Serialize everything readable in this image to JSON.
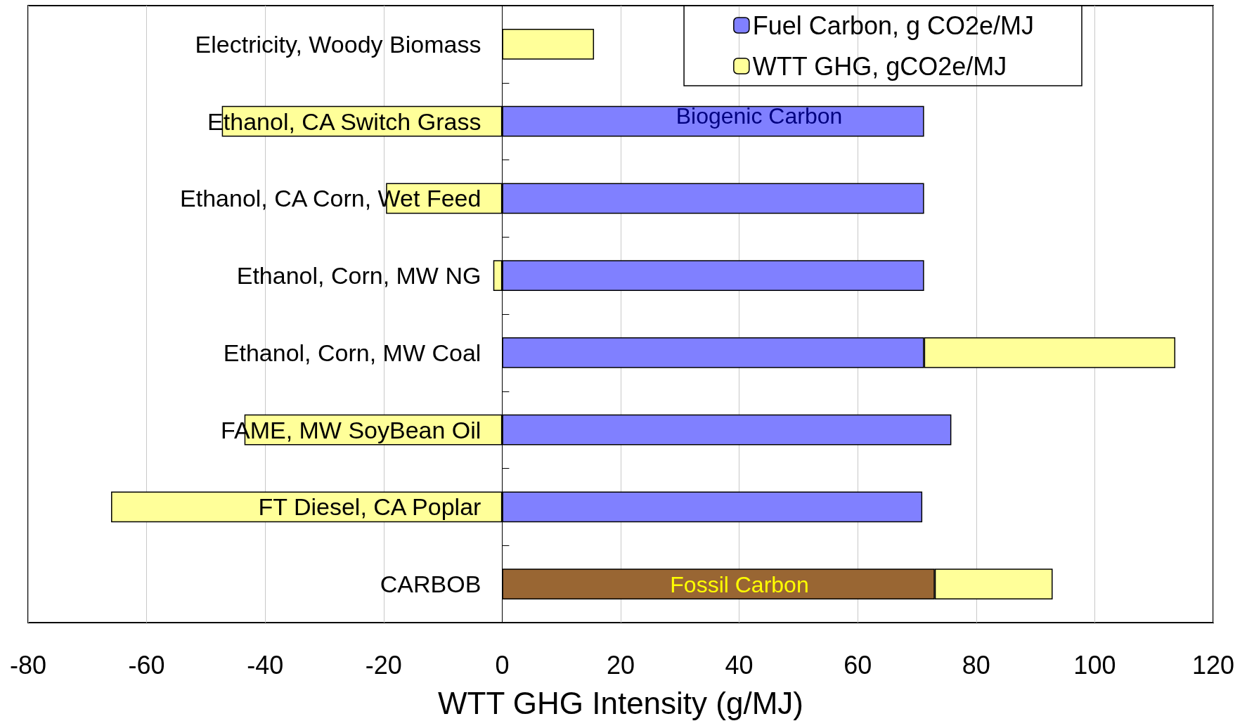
{
  "chart_data": {
    "type": "bar",
    "orientation": "horizontal",
    "stacked": true,
    "xlabel": "WTT GHG Intensity (g/MJ)",
    "categories": [
      "Electricity, Woody Biomass",
      "Ethanol, CA Switch Grass",
      "Ethanol, CA Corn, Wet Feed",
      "Ethanol, Corn, MW NG",
      "Ethanol, Corn, MW Coal",
      "FAME, MW SoyBean Oil",
      "FT Diesel, CA Poplar",
      "CARBOB"
    ],
    "series": [
      {
        "name": "Fuel Carbon, g CO2e/MJ",
        "color": "#8080ff",
        "colors": [
          "#8080ff",
          "#8080ff",
          "#8080ff",
          "#8080ff",
          "#8080ff",
          "#8080ff",
          "#8080ff",
          "#996633"
        ],
        "values": [
          null,
          71.2,
          71.2,
          71.2,
          71.2,
          75.8,
          70.9,
          73
        ]
      },
      {
        "name": "WTT GHG, gCO2e/MJ",
        "color": "#ffff99",
        "values": [
          15.5,
          -47.3,
          -19.6,
          -1.5,
          42.4,
          -43.5,
          -66,
          19.9
        ]
      }
    ],
    "annotations": [
      "Biogenic Carbon",
      "Fossil Carbon"
    ],
    "xlim": [
      -80,
      120
    ],
    "xticks": [
      -80,
      -60,
      -40,
      -20,
      0,
      20,
      40,
      60,
      80,
      100,
      120
    ],
    "grid": "x",
    "legend": "top right"
  }
}
